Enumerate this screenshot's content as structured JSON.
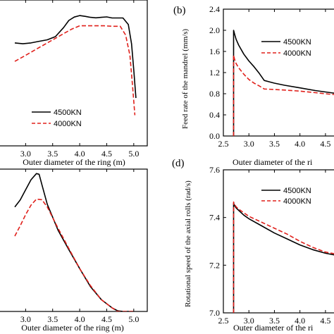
{
  "colors": {
    "series1": "#000000",
    "series2": "#e0201b",
    "axis": "#000000"
  },
  "chart_data": [
    {
      "id": "a",
      "type": "line",
      "panel_label": "",
      "xlabel": "Outer diameter of the ring (m)",
      "ylabel": "",
      "xlim": [
        2.5,
        5.25
      ],
      "ylim": [
        0,
        1
      ],
      "xticks": [
        "3.0",
        "3.5",
        "4.0",
        "4.5",
        "5.0"
      ],
      "xtick_values": [
        3.0,
        3.5,
        4.0,
        4.5,
        5.0
      ],
      "yticks": [],
      "legend": "lower-center",
      "series": [
        {
          "name": "4500KN",
          "style": "solid",
          "x": [
            2.8,
            2.95,
            3.1,
            3.25,
            3.4,
            3.55,
            3.7,
            3.8,
            3.9,
            4.0,
            4.1,
            4.2,
            4.3,
            4.4,
            4.5,
            4.6,
            4.7,
            4.8,
            4.9,
            4.96,
            5.0,
            5.04
          ],
          "y": [
            0.706,
            0.7,
            0.706,
            0.717,
            0.727,
            0.749,
            0.81,
            0.86,
            0.883,
            0.893,
            0.888,
            0.881,
            0.878,
            0.881,
            0.884,
            0.877,
            0.877,
            0.877,
            0.832,
            0.699,
            0.523,
            0.328
          ]
        },
        {
          "name": "4000KN",
          "style": "dashed",
          "x": [
            2.8,
            2.95,
            3.1,
            3.25,
            3.4,
            3.55,
            3.7,
            3.85,
            4.0,
            4.15,
            4.3,
            4.45,
            4.6,
            4.75,
            4.85,
            4.93,
            4.98,
            5.02
          ],
          "y": [
            0.579,
            0.61,
            0.642,
            0.674,
            0.706,
            0.737,
            0.769,
            0.8,
            0.823,
            0.823,
            0.823,
            0.823,
            0.82,
            0.82,
            0.76,
            0.62,
            0.4,
            0.21
          ]
        }
      ]
    },
    {
      "id": "b",
      "type": "line",
      "panel_label": "(b)",
      "xlabel": "Outer diameter of the ri",
      "ylabel": "Feed rate of the mandrel (mm/s)",
      "xlim": [
        2.5,
        4.75
      ],
      "ylim": [
        0.0,
        2.4
      ],
      "xticks": [
        "2.5",
        "3.0",
        "3.5",
        "4.0",
        "4.5"
      ],
      "xtick_values": [
        2.5,
        3.0,
        3.5,
        4.0,
        4.5
      ],
      "yticks": [
        "0.0",
        "0.4",
        "0.8",
        "1.2",
        "1.6",
        "2.0",
        "2.4"
      ],
      "ytick_values": [
        0.0,
        0.4,
        0.8,
        1.2,
        1.6,
        2.0,
        2.4
      ],
      "legend": "top-right",
      "series": [
        {
          "name": "4500KN",
          "style": "solid",
          "x": [
            2.7,
            2.7,
            2.72,
            2.75,
            2.8,
            2.9,
            3.0,
            3.1,
            3.2,
            3.3,
            3.5,
            3.7,
            4.0,
            4.3,
            4.6,
            4.75
          ],
          "y": [
            0.0,
            2.0,
            1.93,
            1.83,
            1.72,
            1.55,
            1.42,
            1.31,
            1.19,
            1.05,
            1.0,
            0.96,
            0.91,
            0.86,
            0.82,
            0.8
          ]
        },
        {
          "name": "4000KN",
          "style": "dashed",
          "x": [
            2.7,
            2.7,
            2.72,
            2.75,
            2.8,
            2.9,
            3.0,
            3.1,
            3.2,
            3.3,
            3.5,
            3.7,
            4.0,
            4.3,
            4.6,
            4.75
          ],
          "y": [
            0.0,
            1.53,
            1.45,
            1.37,
            1.29,
            1.17,
            1.07,
            1.0,
            0.95,
            0.89,
            0.88,
            0.87,
            0.85,
            0.82,
            0.79,
            0.78
          ]
        }
      ]
    },
    {
      "id": "c",
      "type": "line",
      "panel_label": "",
      "xlabel": "Outer diameter of the ring (m)",
      "ylabel": "",
      "xlim": [
        2.5,
        5.25
      ],
      "ylim": [
        0,
        1
      ],
      "xticks": [
        "3.0",
        "3.5",
        "4.0",
        "4.5",
        "5.0"
      ],
      "xtick_values": [
        3.0,
        3.5,
        4.0,
        4.5,
        5.0
      ],
      "yticks": [],
      "legend": "none",
      "series": [
        {
          "name": "4500KN",
          "style": "solid",
          "x": [
            2.8,
            2.9,
            3.0,
            3.1,
            3.2,
            3.25,
            3.3,
            3.4,
            3.6,
            3.8,
            4.0,
            4.2,
            4.4,
            4.6,
            4.7,
            4.8,
            5.0
          ],
          "y": [
            0.734,
            0.783,
            0.855,
            0.925,
            0.969,
            0.964,
            0.892,
            0.753,
            0.571,
            0.434,
            0.301,
            0.174,
            0.083,
            0.025,
            0.005,
            0.0,
            0.0
          ]
        },
        {
          "name": "4000KN",
          "style": "dashed",
          "x": [
            2.8,
            2.9,
            3.0,
            3.1,
            3.2,
            3.3,
            3.4,
            3.6,
            3.8,
            4.0,
            4.2,
            4.4,
            4.6,
            4.7,
            4.8,
            5.0
          ],
          "y": [
            0.529,
            0.602,
            0.68,
            0.747,
            0.789,
            0.785,
            0.734,
            0.584,
            0.442,
            0.301,
            0.181,
            0.083,
            0.025,
            0.0,
            0.0,
            0.0
          ]
        }
      ]
    },
    {
      "id": "d",
      "type": "line",
      "panel_label": "(d)",
      "xlabel": "Outer diameter of the ri",
      "ylabel": "Rotational speed of the axial rolls (rad/s)",
      "xlim": [
        2.5,
        4.75
      ],
      "ylim": [
        7.0,
        7.6
      ],
      "xticks": [
        "2.5",
        "3.0",
        "3.5",
        "4.0",
        "4.5"
      ],
      "xtick_values": [
        2.5,
        3.0,
        3.5,
        4.0,
        4.5
      ],
      "yticks": [
        "7.0",
        "7.2",
        "7.4",
        "7.6"
      ],
      "ytick_values": [
        7.0,
        7.2,
        7.4,
        7.6
      ],
      "legend": "top-right",
      "series": [
        {
          "name": "4500KN",
          "style": "solid",
          "x": [
            2.7,
            2.7,
            2.72,
            2.75,
            2.8,
            2.9,
            3.0,
            3.25,
            3.5,
            3.75,
            4.0,
            4.25,
            4.5,
            4.75
          ],
          "y": [
            7.0,
            7.46,
            7.45,
            7.44,
            7.43,
            7.41,
            7.395,
            7.365,
            7.335,
            7.31,
            7.285,
            7.265,
            7.25,
            7.24
          ]
        },
        {
          "name": "4000KN",
          "style": "dashed",
          "x": [
            2.7,
            2.7,
            2.72,
            2.75,
            2.8,
            2.9,
            3.0,
            3.25,
            3.5,
            3.75,
            4.0,
            4.25,
            4.5,
            4.75
          ],
          "y": [
            7.0,
            7.465,
            7.455,
            7.445,
            7.435,
            7.42,
            7.405,
            7.38,
            7.355,
            7.33,
            7.3,
            7.275,
            7.255,
            7.245
          ]
        }
      ]
    }
  ]
}
